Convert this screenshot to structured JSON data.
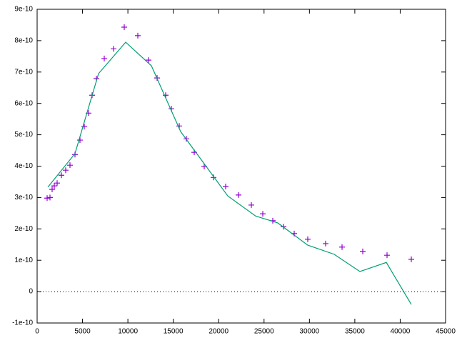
{
  "chart_data": {
    "type": "scatter",
    "xlim": [
      0,
      45000
    ],
    "xticks": [
      0,
      5000,
      10000,
      15000,
      20000,
      25000,
      30000,
      35000,
      40000,
      45000
    ],
    "ylim": [
      -1e-10,
      9e-10
    ],
    "yticks": [
      -1e-10,
      0,
      1e-10,
      2e-10,
      3e-10,
      4e-10,
      5e-10,
      6e-10,
      7e-10,
      8e-10,
      9e-10
    ],
    "zero_line": true,
    "series": [
      {
        "type": "scatter",
        "color": "#9400d3",
        "x": [
          1101,
          1416,
          1652,
          1888,
          2203,
          2675,
          3147,
          3619,
          4170,
          4720,
          5192,
          5664,
          6058,
          6530,
          7395,
          8418,
          9598,
          11093,
          12273,
          13217,
          14161,
          14790,
          15656,
          16443,
          17308,
          18409,
          19432,
          20770,
          22186,
          23602,
          24861,
          25963,
          27143,
          28323,
          29817,
          31784,
          33594,
          35875,
          38550,
          41225
        ],
        "values": [
          2.98e-10,
          3e-10,
          3.26e-10,
          3.37e-10,
          3.46e-10,
          3.71e-10,
          3.87e-10,
          4.03e-10,
          4.37e-10,
          4.83e-10,
          5.26e-10,
          5.69e-10,
          6.26e-10,
          6.79e-10,
          7.43e-10,
          7.74e-10,
          8.43e-10,
          8.16e-10,
          7.38e-10,
          6.81e-10,
          6.26e-10,
          5.83e-10,
          5.28e-10,
          4.87e-10,
          4.44e-10,
          3.99e-10,
          3.64e-10,
          3.35e-10,
          3.08e-10,
          2.76e-10,
          2.48e-10,
          2.26e-10,
          2.07e-10,
          1.85e-10,
          1.67e-10,
          1.53e-10,
          1.42e-10,
          1.28e-10,
          1.16e-10,
          1.03e-10
        ]
      },
      {
        "type": "line",
        "color": "#009e73",
        "x": [
          1180,
          4170,
          6766,
          9755,
          12588,
          15813,
          21005,
          24074,
          26512,
          29817,
          32728,
          35560,
          38471,
          41225
        ],
        "values": [
          3.33e-10,
          4.4e-10,
          6.95e-10,
          7.95e-10,
          7.2e-10,
          5.1e-10,
          3.05e-10,
          2.41e-10,
          2.19e-10,
          1.48e-10,
          1.19e-10,
          6.4e-11,
          9.3e-11,
          -4.1e-11
        ]
      }
    ]
  }
}
